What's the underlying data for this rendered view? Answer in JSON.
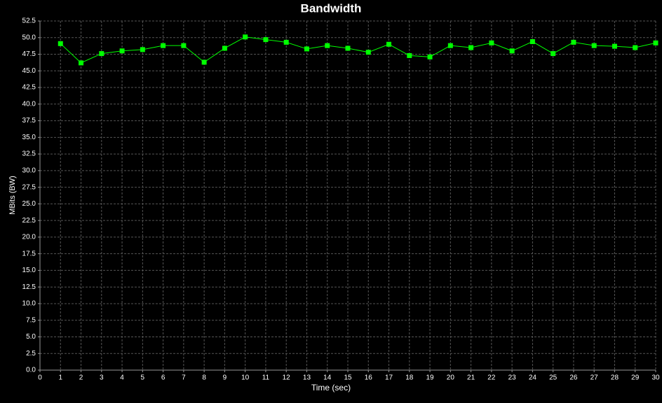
{
  "chart_data": {
    "type": "line",
    "title": "Bandwidth",
    "x_label": "Time (sec)",
    "y_label": "MBits (BW)",
    "x": [
      1,
      2,
      3,
      4,
      5,
      6,
      7,
      8,
      9,
      10,
      11,
      12,
      13,
      14,
      15,
      16,
      17,
      18,
      19,
      20,
      21,
      22,
      23,
      24,
      25,
      26,
      27,
      28,
      29,
      30
    ],
    "values": [
      49.1,
      46.2,
      47.6,
      48.0,
      48.2,
      48.8,
      48.8,
      46.3,
      48.4,
      50.1,
      49.7,
      49.3,
      48.3,
      48.8,
      48.4,
      47.8,
      49.0,
      47.3,
      47.1,
      48.8,
      48.5,
      49.2,
      48.0,
      49.4,
      47.6,
      49.3,
      48.8,
      48.7,
      48.5,
      49.2
    ],
    "color": "#00ff00",
    "xlim": [
      0,
      30
    ],
    "xticks": [
      0,
      1,
      2,
      3,
      4,
      5,
      6,
      7,
      8,
      9,
      10,
      11,
      12,
      13,
      14,
      15,
      16,
      17,
      18,
      19,
      20,
      21,
      22,
      23,
      24,
      25,
      26,
      27,
      28,
      29,
      30
    ],
    "ylim": [
      0,
      52.5
    ],
    "yticks": [
      {
        "value": 0,
        "label": "0.0"
      },
      2.5,
      {
        "value": 5,
        "label": "5.0"
      },
      7.5,
      {
        "value": 10,
        "label": "10.0"
      },
      12.5,
      {
        "value": 15,
        "label": "15.0"
      },
      17.5,
      {
        "value": 20,
        "label": "20.0"
      },
      22.5,
      {
        "value": 25,
        "label": "25.0"
      },
      27.5,
      {
        "value": 30,
        "label": "30.0"
      },
      32.5,
      {
        "value": 35,
        "label": "35.0"
      },
      37.5,
      {
        "value": 40,
        "label": "40.0"
      },
      42.5,
      {
        "value": 45,
        "label": "45.0"
      },
      47.5,
      {
        "value": 50,
        "label": "50.0"
      },
      52.5
    ],
    "grid": true
  }
}
